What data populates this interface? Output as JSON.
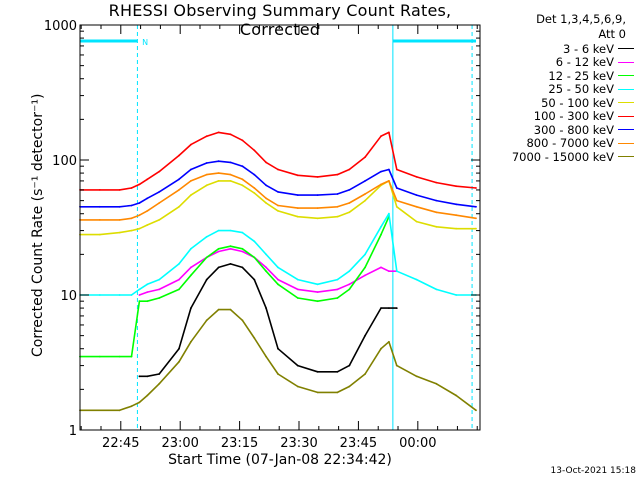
{
  "chart_data": {
    "type": "line",
    "title": "RHESSI Observing Summary Count Rates, Corrected",
    "xlabel": "Start Time (07-Jan-08 22:34:42)",
    "ylabel": "Corrected Count Rate (s⁻¹ detector⁻¹)",
    "yscale": "log",
    "ylim": [
      1,
      1000
    ],
    "y_ticks": [
      "1",
      "10",
      "100",
      "1000"
    ],
    "x_ticks": [
      "22:45",
      "23:00",
      "23:15",
      "23:30",
      "23:45",
      "00:00"
    ],
    "x_tick_minutes": [
      10.3,
      25.3,
      40.3,
      55.3,
      70.3,
      85.3
    ],
    "xlim_minutes": [
      0,
      101
    ],
    "legend_header": [
      "Det 1,3,4,5,6,9,",
      "Att 0"
    ],
    "legend_position": "right",
    "grid": false,
    "night_marker": "N",
    "timestamp": "13-Oct-2021 15:18",
    "series": [
      {
        "name": "3 - 6 keV",
        "color": "#000000",
        "x": [
          15,
          17,
          20,
          25,
          28,
          32,
          35,
          38,
          41,
          44,
          47,
          50,
          55,
          60,
          65,
          68,
          72,
          76,
          78,
          80
        ],
        "y": [
          2.5,
          2.5,
          2.6,
          4,
          8,
          13,
          16,
          17,
          16,
          13,
          8,
          4,
          3,
          2.7,
          2.7,
          3,
          5,
          8,
          8,
          8
        ]
      },
      {
        "name": "6 - 12 keV",
        "color": "#ff00ff",
        "x": [
          15,
          17,
          20,
          25,
          28,
          32,
          35,
          38,
          41,
          44,
          47,
          50,
          55,
          60,
          65,
          68,
          72,
          76,
          78,
          80
        ],
        "y": [
          10,
          10.5,
          11,
          13,
          16,
          19,
          21,
          22,
          21,
          19,
          16,
          13,
          11,
          10.5,
          11,
          12,
          14,
          16,
          15,
          15
        ]
      },
      {
        "name": "12 - 25 keV",
        "color": "#00ff00",
        "x": [
          0,
          5,
          10,
          13,
          15,
          17,
          20,
          25,
          28,
          32,
          35,
          38,
          41,
          44,
          47,
          50,
          55,
          60,
          65,
          68,
          72,
          76,
          78
        ],
        "y": [
          3.5,
          3.5,
          3.5,
          3.5,
          9,
          9,
          9.5,
          11,
          14,
          19,
          22,
          23,
          22,
          19,
          15,
          12,
          9.5,
          9,
          9.5,
          11,
          16,
          28,
          38
        ]
      },
      {
        "name": "25 - 50 keV",
        "color": "#00ffff",
        "x": [
          0,
          5,
          10,
          13,
          15,
          17,
          20,
          25,
          28,
          32,
          35,
          38,
          41,
          44,
          47,
          50,
          55,
          60,
          65,
          68,
          72,
          76,
          78,
          80,
          85,
          90,
          95,
          100
        ],
        "y": [
          10,
          10,
          10,
          10,
          11,
          12,
          13,
          17,
          22,
          27,
          30,
          30,
          29,
          25,
          20,
          16,
          13,
          12,
          13,
          15,
          20,
          32,
          40,
          15,
          13,
          11,
          10,
          10
        ]
      },
      {
        "name": "50 - 100 keV",
        "color": "#dddd00",
        "x": [
          0,
          5,
          10,
          13,
          15,
          17,
          20,
          25,
          28,
          32,
          35,
          38,
          41,
          44,
          47,
          50,
          55,
          60,
          65,
          68,
          72,
          76,
          78,
          80,
          85,
          90,
          95,
          100
        ],
        "y": [
          28,
          28,
          29,
          30,
          31,
          33,
          36,
          45,
          55,
          65,
          70,
          70,
          65,
          57,
          48,
          42,
          38,
          37,
          38,
          41,
          50,
          65,
          70,
          45,
          35,
          32,
          31,
          31
        ]
      },
      {
        "name": "100 - 300 keV",
        "color": "#ff0000",
        "x": [
          0,
          5,
          10,
          13,
          15,
          17,
          20,
          25,
          28,
          32,
          35,
          38,
          41,
          44,
          47,
          50,
          55,
          60,
          65,
          68,
          72,
          76,
          78,
          80,
          85,
          90,
          95,
          100
        ],
        "y": [
          60,
          60,
          60,
          62,
          66,
          72,
          82,
          108,
          130,
          150,
          160,
          155,
          140,
          118,
          96,
          85,
          77,
          75,
          78,
          85,
          105,
          150,
          160,
          85,
          75,
          68,
          64,
          62
        ]
      },
      {
        "name": "300 - 800 keV",
        "color": "#0000ff",
        "x": [
          0,
          5,
          10,
          13,
          15,
          17,
          20,
          25,
          28,
          32,
          35,
          38,
          41,
          44,
          47,
          50,
          55,
          60,
          65,
          68,
          72,
          76,
          78,
          80,
          85,
          90,
          95,
          100
        ],
        "y": [
          45,
          45,
          45,
          46,
          48,
          52,
          58,
          72,
          85,
          95,
          98,
          96,
          90,
          78,
          65,
          58,
          55,
          55,
          56,
          60,
          70,
          82,
          85,
          62,
          55,
          50,
          47,
          45
        ]
      },
      {
        "name": "800 - 7000 keV",
        "color": "#ff8800",
        "x": [
          0,
          5,
          10,
          13,
          15,
          17,
          20,
          25,
          28,
          32,
          35,
          38,
          41,
          44,
          47,
          50,
          55,
          60,
          65,
          68,
          72,
          76,
          78,
          80,
          85,
          90,
          95,
          100
        ],
        "y": [
          36,
          36,
          36,
          37,
          39,
          42,
          48,
          60,
          70,
          78,
          80,
          78,
          72,
          62,
          52,
          46,
          44,
          44,
          45,
          48,
          56,
          66,
          70,
          50,
          45,
          41,
          39,
          37
        ]
      },
      {
        "name": "7000 - 15000 keV",
        "color": "#808000",
        "x": [
          0,
          10,
          13,
          15,
          17,
          20,
          25,
          28,
          32,
          35,
          38,
          41,
          44,
          47,
          50,
          55,
          60,
          65,
          68,
          72,
          76,
          78,
          80,
          85,
          90,
          95,
          100
        ],
        "y": [
          1.4,
          1.4,
          1.5,
          1.6,
          1.8,
          2.2,
          3.2,
          4.5,
          6.5,
          7.8,
          7.8,
          6.5,
          4.8,
          3.5,
          2.6,
          2.1,
          1.9,
          1.9,
          2.1,
          2.6,
          4.0,
          4.5,
          3.0,
          2.5,
          2.2,
          1.8,
          1.4
        ]
      }
    ]
  }
}
